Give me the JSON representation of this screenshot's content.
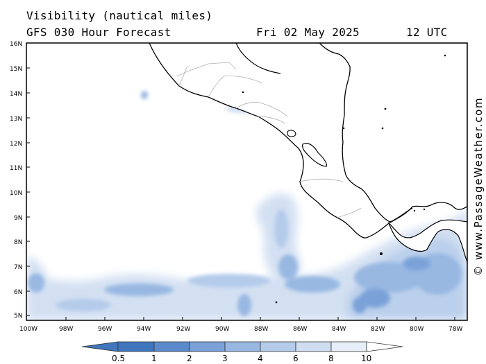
{
  "header": {
    "line1": "Visibility (nautical miles)",
    "line2": "GFS 030 Hour Forecast",
    "date": "Fri 02 May 2025",
    "time": "12 UTC"
  },
  "credit": "© www.PassageWeather.com",
  "axes": {
    "lat_labels": [
      "16N",
      "15N",
      "14N",
      "13N",
      "12N",
      "11N",
      "10N",
      "9N",
      "8N",
      "7N",
      "6N",
      "5N"
    ],
    "lon_labels": [
      "100W",
      "98W",
      "96W",
      "94W",
      "92W",
      "90W",
      "88W",
      "86W",
      "84W",
      "82W",
      "80W",
      "78W"
    ]
  },
  "colorbar": {
    "labels": [
      "0.5",
      "1",
      "2",
      "3",
      "4",
      "6",
      "8",
      "10"
    ],
    "colors": [
      "#3f76bd",
      "#5a89cc",
      "#7aa2d8",
      "#98b8e2",
      "#b4cbea",
      "#cfddf1",
      "#e6eef8"
    ]
  },
  "palette": {
    "land": "#ffffff",
    "coast": "#000000",
    "border": "#b0b0b0",
    "ocean": "#ffffff"
  },
  "map_data": {
    "region": "Central America / Eastern Pacific",
    "projection": "equirectangular",
    "lon_range": [
      -100,
      -77.5
    ],
    "lat_range": [
      4.8,
      16.0
    ]
  }
}
